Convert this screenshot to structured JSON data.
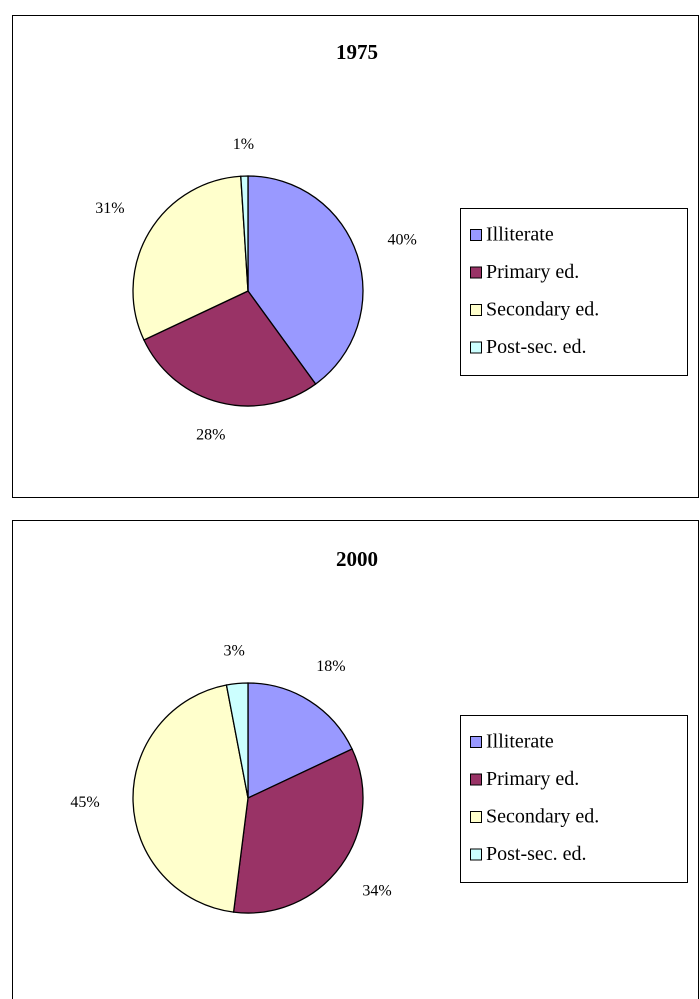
{
  "chart_data": [
    {
      "type": "pie",
      "title": "1975",
      "categories": [
        "Illiterate",
        "Primary ed.",
        "Secondary ed.",
        "Post-sec. ed."
      ],
      "values": [
        40,
        28,
        31,
        1
      ],
      "value_labels": [
        "40%",
        "28%",
        "31%",
        "1%"
      ],
      "colors": [
        "#9999ff",
        "#993366",
        "#ffffcc",
        "#ccffff"
      ],
      "legend": "right"
    },
    {
      "type": "pie",
      "title": "2000",
      "categories": [
        "Illiterate",
        "Primary ed.",
        "Secondary ed.",
        "Post-sec. ed."
      ],
      "values": [
        18,
        34,
        45,
        3
      ],
      "value_labels": [
        "18%",
        "34%",
        "45%",
        "3%"
      ],
      "colors": [
        "#9999ff",
        "#993366",
        "#ffffcc",
        "#ccffff"
      ],
      "legend": "right"
    }
  ]
}
